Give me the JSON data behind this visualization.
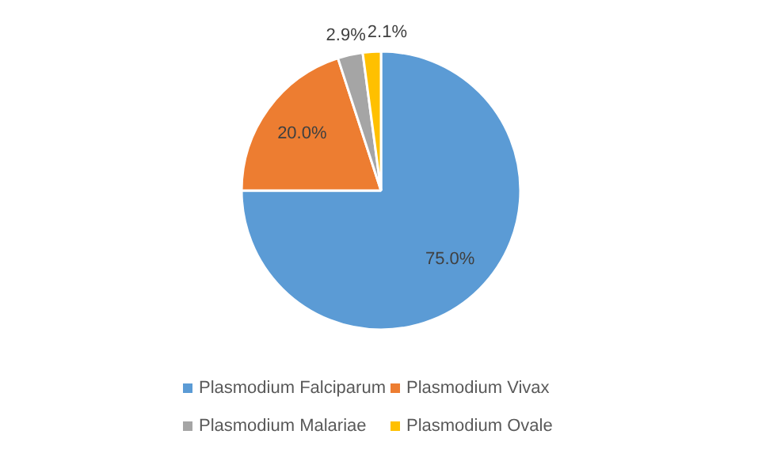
{
  "chart_data": {
    "type": "pie",
    "categories": [
      "Plasmodium Falciparum",
      "Plasmodium Vivax",
      "Plasmodium Malariae",
      "Plasmodium Ovale"
    ],
    "values": [
      75.0,
      20.0,
      2.9,
      2.1
    ],
    "colors": [
      "#5b9bd5",
      "#ed7d31",
      "#a5a5a5",
      "#ffc000"
    ],
    "value_labels": [
      "75.0%",
      "20.0%",
      "2.9%",
      "2.1%"
    ],
    "legend": "bottom"
  }
}
